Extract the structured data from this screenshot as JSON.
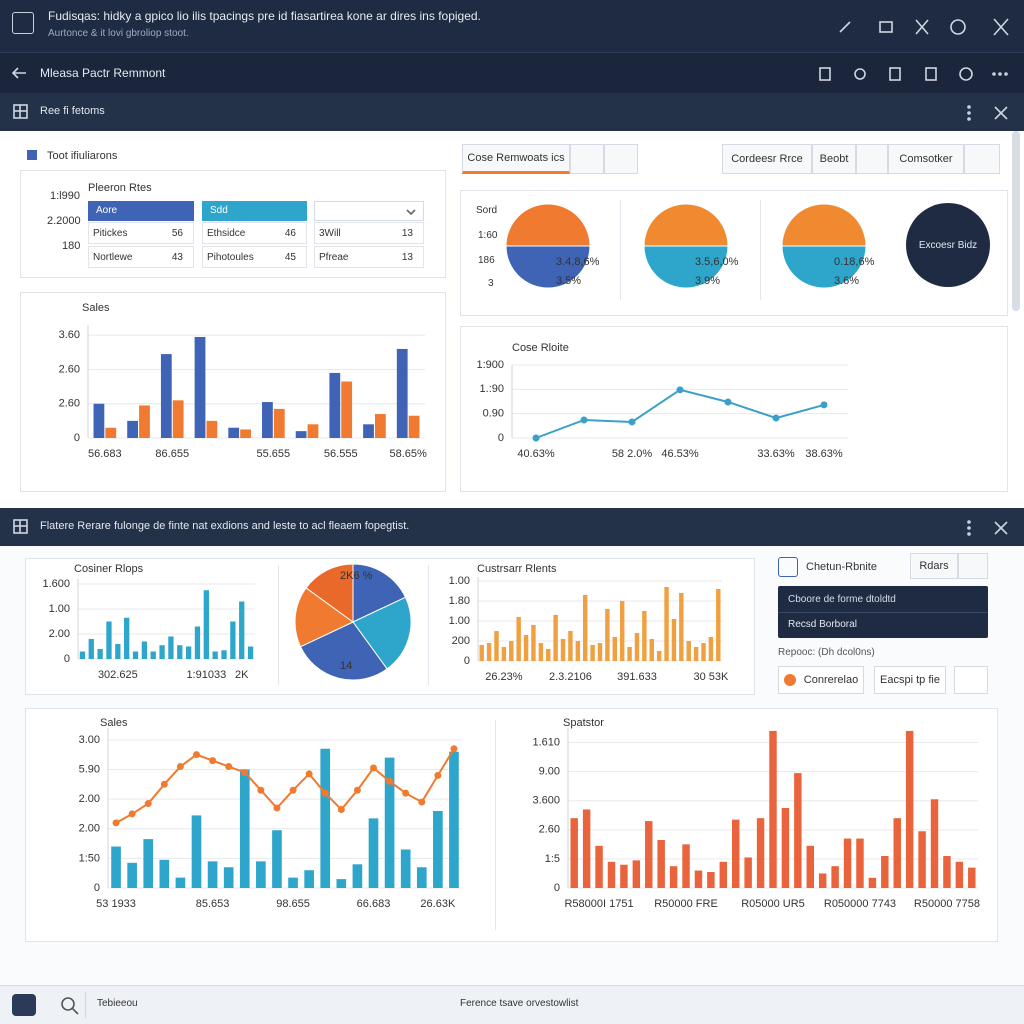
{
  "window": {
    "title": "Fudisqas: hidky a gpico lio ilis tpacings pre id fiasartirea kone ar dires ins fopiged.",
    "subtitle": "Aurtonce & it lovi gbroliop stoot."
  },
  "toolbar": {
    "title": "Mleasa Pactr Remmont"
  },
  "section1": {
    "title": "Ree fi fetoms"
  },
  "summary": {
    "title": "Toot ifiuliarons",
    "label": "Pleeron Rtes",
    "axis": [
      "1:l990",
      "2.2000",
      "180"
    ],
    "tabs": [
      "Aore",
      "Sdd"
    ],
    "rows": [
      [
        [
          "Pitickes",
          56
        ],
        [
          "Ethsidce",
          46
        ],
        [
          "3Will",
          13
        ]
      ],
      [
        [
          "Nortlewe",
          43
        ],
        [
          "Pihotoules",
          45
        ],
        [
          "Pfreae",
          13
        ]
      ]
    ]
  },
  "buttons": [
    "Cose Remwoats ics",
    "Cordeesr Rrce",
    "Beobt",
    "Comsotker"
  ],
  "pie_axis": [
    "Sord",
    "1:60",
    "186",
    "3"
  ],
  "badge": "Excoesr Bidz",
  "section2": {
    "title": "Flatere Rerare fulonge de finte nat exdions and leste to acl fleaem fopegtist."
  },
  "side_panel": {
    "title": "Chetun-Rbnite",
    "button": "Rdars",
    "select_title": "Cboore de forme dtoldtd",
    "select_value": "Recsd Borboral",
    "note": "Repooc: (Dh dcol0ns)",
    "actions": [
      "Conrerelao",
      "Eacspi tp fie"
    ]
  },
  "footer": {
    "left": "Tebieeou",
    "center": "Ference tsave orvestowlist"
  },
  "chart_data": [
    {
      "type": "bar",
      "title": "Sales",
      "grid": true,
      "categories": [
        "56.683",
        null,
        "86.655",
        null,
        null,
        "55.655",
        null,
        "56.555",
        null,
        "58.65%"
      ],
      "series": [
        {
          "color": "#3f63b5",
          "values": [
            1.0,
            0.5,
            2.45,
            2.95,
            0.3,
            1.05,
            0.2,
            1.9,
            0.4,
            2.6
          ]
        },
        {
          "color": "#f07a30",
          "values": [
            0.3,
            0.95,
            1.1,
            0.5,
            0.25,
            0.85,
            0.4,
            1.65,
            0.7,
            0.65
          ]
        }
      ],
      "ylim": [
        0,
        3.3
      ],
      "yticks": [
        0,
        {
          "value": 1,
          "label": "2.60"
        },
        {
          "value": 2,
          "label": "2.60"
        },
        {
          "value": 3,
          "label": "3.60"
        }
      ]
    },
    {
      "type": "pie",
      "values": [
        50,
        50
      ],
      "colors": [
        "#f07a30",
        "#3f63b5"
      ],
      "annotations": [
        "3.4,8,6%",
        "3.5%"
      ]
    },
    {
      "type": "pie",
      "values": [
        50,
        50
      ],
      "colors": [
        "#f08a30",
        "#2ea6cc"
      ],
      "annotations": [
        "3.5,6,0%",
        "3.9%"
      ]
    },
    {
      "type": "pie",
      "values": [
        50,
        50
      ],
      "colors": [
        "#f08a30",
        "#2ea6cc"
      ],
      "annotations": [
        "0.18,6%",
        "3.6%"
      ]
    },
    {
      "type": "line",
      "title": "Cose Rloite",
      "grid": true,
      "categories": [
        "40.63%",
        null,
        "58 2.0%",
        "46.53%",
        null,
        "33.63%",
        "38.63%"
      ],
      "series": [
        {
          "color": "#3aa0c8",
          "markers": true,
          "values": [
            0,
            0.74,
            0.66,
            1.98,
            1.48,
            0.82,
            1.36
          ]
        }
      ],
      "ylim": [
        0,
        3
      ],
      "yticks": [
        0,
        {
          "value": 1,
          "label": "0.90"
        },
        {
          "value": 2,
          "label": "1.:90"
        },
        {
          "value": 3,
          "label": "1:900"
        }
      ]
    },
    {
      "type": "bar",
      "title": "Cosiner Rlops",
      "grid": true,
      "categories": [
        null,
        null,
        null,
        null,
        "302.625",
        null,
        null,
        null,
        null,
        null,
        null,
        null,
        null,
        null,
        "1:91033",
        null,
        null,
        null,
        "2K",
        null
      ],
      "series": [
        {
          "color": "#2ea6cc",
          "values": [
            0.3,
            0.8,
            0.4,
            1.5,
            0.6,
            1.65,
            0.3,
            0.7,
            0.3,
            0.55,
            0.9,
            0.55,
            0.5,
            1.3,
            2.75,
            0.3,
            0.35,
            1.5,
            2.3,
            0.5
          ]
        }
      ],
      "ylim": [
        0,
        3.2
      ],
      "yticks": [
        0,
        {
          "value": 1,
          "label": "2.00"
        },
        {
          "value": 2,
          "label": "1.00"
        },
        {
          "value": 3,
          "label": "1.600"
        }
      ]
    },
    {
      "type": "pie",
      "values": [
        18,
        22,
        28,
        17,
        15
      ],
      "colors": [
        "#3f63b5",
        "#2ea6cc",
        "#3f63b5",
        "#f07a30",
        "#e8692a"
      ],
      "annotations": [
        "2K6 %",
        "14"
      ]
    },
    {
      "type": "bar",
      "title": "Custrsarr Rlents",
      "grid": true,
      "categories": [
        null,
        null,
        null,
        "26.23%",
        null,
        null,
        null,
        null,
        null,
        null,
        null,
        null,
        "2.3.2106",
        null,
        null,
        null,
        null,
        null,
        null,
        null,
        null,
        "391.633",
        null,
        null,
        null,
        null,
        null,
        null,
        null,
        null,
        null,
        "30 53K",
        null
      ],
      "series": [
        {
          "color": "#f0a040",
          "values": [
            0.8,
            0.9,
            1.5,
            0.7,
            1.0,
            2.2,
            1.3,
            1.8,
            0.9,
            0.6,
            2.3,
            1.1,
            1.5,
            1.0,
            3.3,
            0.8,
            0.9,
            2.6,
            1.2,
            3.0,
            0.7,
            1.4,
            2.5,
            1.1,
            0.5,
            3.7,
            2.1,
            3.4,
            1.0,
            0.7,
            0.9,
            1.2,
            3.6
          ]
        }
      ],
      "ylim": [
        0,
        4.2
      ],
      "yticks": [
        0,
        {
          "value": 1,
          "label": "200"
        },
        {
          "value": 2,
          "label": "1.00"
        },
        {
          "value": 3,
          "label": "1.80"
        },
        {
          "value": 4,
          "label": "1.00"
        }
      ]
    },
    {
      "type": "bar",
      "title": "Sales",
      "grid": true,
      "categories": [
        "53 1933",
        null,
        null,
        null,
        null,
        null,
        "85.653",
        null,
        null,
        null,
        null,
        "98.655",
        null,
        null,
        null,
        null,
        "66.683",
        null,
        null,
        null,
        "26.63K",
        null
      ],
      "series": [
        {
          "color": "#2ea6cc",
          "values": [
            1.4,
            0.85,
            1.65,
            0.95,
            0.35,
            2.45,
            0.9,
            0.7,
            4.0,
            0.9,
            1.95,
            0.35,
            0.6,
            4.7,
            0.3,
            0.8,
            2.35,
            4.4,
            1.3,
            0.7,
            2.6,
            4.6
          ]
        },
        {
          "type": "line",
          "color": "#f07a30",
          "markers": true,
          "values": [
            2.2,
            2.5,
            2.85,
            3.5,
            4.1,
            4.5,
            4.3,
            4.1,
            3.9,
            3.3,
            2.7,
            3.3,
            3.85,
            3.2,
            2.65,
            3.3,
            4.05,
            3.6,
            3.2,
            2.9,
            3.8,
            4.7
          ]
        }
      ],
      "ylim": [
        0,
        5.4
      ],
      "yticks": [
        0,
        {
          "value": 1,
          "label": "1:50"
        },
        {
          "value": 2,
          "label": "2.00"
        },
        {
          "value": 3,
          "label": "2.00"
        },
        {
          "value": 4,
          "label": "5.90"
        },
        {
          "value": 5,
          "label": "3.00"
        }
      ]
    },
    {
      "type": "bar",
      "title": "Spatstor",
      "grid": true,
      "categories": [
        null,
        null,
        "R58000I 1751",
        null,
        null,
        null,
        null,
        null,
        null,
        "R50000 FRE",
        null,
        null,
        null,
        null,
        null,
        null,
        "R05000 UR5",
        null,
        null,
        null,
        null,
        null,
        null,
        "R050000 7743",
        null,
        null,
        null,
        null,
        null,
        null,
        "R50000 7758",
        null,
        null
      ],
      "series": [
        {
          "color": "#e9643c",
          "values": [
            2.4,
            2.7,
            1.45,
            0.9,
            0.8,
            0.95,
            2.3,
            1.65,
            0.75,
            1.5,
            0.6,
            0.55,
            0.9,
            2.35,
            1.05,
            2.4,
            5.4,
            2.75,
            3.95,
            1.45,
            0.5,
            0.75,
            1.7,
            1.7,
            0.35,
            1.1,
            2.4,
            5.4,
            1.95,
            3.05,
            1.1,
            0.9,
            0.7
          ]
        }
      ],
      "ylim": [
        0,
        5.5
      ],
      "yticks": [
        0,
        {
          "value": 1,
          "label": "1:5"
        },
        {
          "value": 2,
          "label": "2.60"
        },
        {
          "value": 3,
          "label": "3.600"
        },
        {
          "value": 4,
          "label": "9.00"
        },
        {
          "value": 5,
          "label": "1.610"
        }
      ]
    }
  ]
}
